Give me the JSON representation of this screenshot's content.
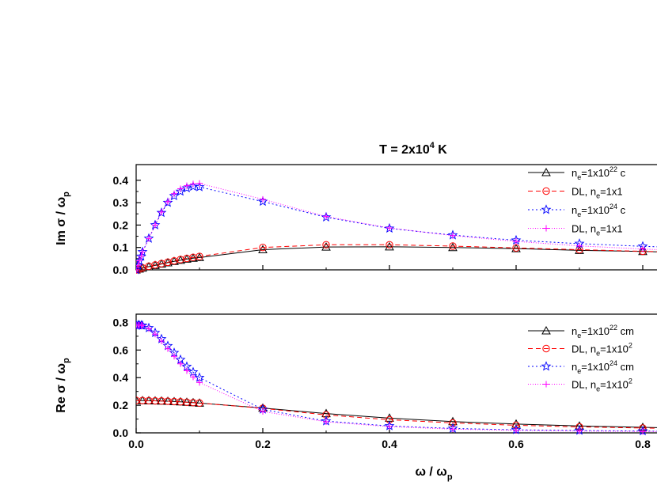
{
  "chart_data": [
    {
      "type": "line",
      "panel": "top",
      "title": "T = 2x10⁴ K",
      "ylabel": "Im σ / ω",
      "ylabel_sub": "p",
      "xlim": [
        0,
        0.86
      ],
      "ylim": [
        0,
        0.47
      ],
      "yticks": [
        0.0,
        0.1,
        0.2,
        0.3,
        0.4
      ],
      "ytick_labels": [
        "0.0",
        "0.1",
        "0.2",
        "0.3",
        "0.4"
      ],
      "legend_position": "top-right",
      "series": [
        {
          "name": "ne=1x10²² c",
          "legend": {
            "base": "n",
            "sub": "e",
            "mid": "=1x10",
            "sup": "22",
            "tail": " c"
          },
          "color": "#000000",
          "dash": "none",
          "marker": "triangle",
          "x": [
            0,
            0.005,
            0.01,
            0.02,
            0.03,
            0.04,
            0.05,
            0.06,
            0.07,
            0.08,
            0.09,
            0.1,
            0.2,
            0.3,
            0.4,
            0.5,
            0.6,
            0.7,
            0.8,
            0.86
          ],
          "y": [
            0,
            0.004,
            0.008,
            0.014,
            0.02,
            0.026,
            0.032,
            0.038,
            0.043,
            0.048,
            0.052,
            0.055,
            0.09,
            0.102,
            0.103,
            0.1,
            0.095,
            0.087,
            0.082,
            0.078
          ]
        },
        {
          "name": "DL, ne=1x1",
          "legend": {
            "base": "DL, n",
            "sub": "e",
            "mid": "=1x1",
            "sup": "",
            "tail": ""
          },
          "color": "#ff0000",
          "dash": "6,4",
          "marker": "circle",
          "x": [
            0,
            0.005,
            0.01,
            0.02,
            0.03,
            0.04,
            0.05,
            0.06,
            0.07,
            0.08,
            0.09,
            0.1,
            0.2,
            0.3,
            0.4,
            0.5,
            0.6,
            0.7,
            0.8,
            0.86
          ],
          "y": [
            0,
            0.004,
            0.009,
            0.016,
            0.022,
            0.028,
            0.034,
            0.04,
            0.046,
            0.051,
            0.056,
            0.06,
            0.1,
            0.112,
            0.112,
            0.106,
            0.098,
            0.09,
            0.083,
            0.078
          ]
        },
        {
          "name": "ne=1x10²⁴ c",
          "legend": {
            "base": "n",
            "sub": "e",
            "mid": "=1x10",
            "sup": "24",
            "tail": " c"
          },
          "color": "#0000ff",
          "dash": "2,3",
          "marker": "star",
          "x": [
            0,
            0.003,
            0.005,
            0.008,
            0.01,
            0.02,
            0.03,
            0.04,
            0.05,
            0.06,
            0.07,
            0.08,
            0.09,
            0.1,
            0.2,
            0.3,
            0.4,
            0.5,
            0.6,
            0.7,
            0.8,
            0.86
          ],
          "y": [
            0,
            0.02,
            0.04,
            0.06,
            0.08,
            0.14,
            0.2,
            0.255,
            0.3,
            0.33,
            0.35,
            0.365,
            0.372,
            0.37,
            0.305,
            0.235,
            0.185,
            0.155,
            0.132,
            0.117,
            0.105,
            0.1
          ]
        },
        {
          "name": "DL, ne=1x1",
          "legend": {
            "base": "DL, n",
            "sub": "e",
            "mid": "=1x1",
            "sup": "",
            "tail": ""
          },
          "color": "#ff00ff",
          "dash": "1,2",
          "marker": "plus",
          "x": [
            0,
            0.003,
            0.005,
            0.008,
            0.01,
            0.02,
            0.03,
            0.04,
            0.05,
            0.06,
            0.07,
            0.08,
            0.09,
            0.1,
            0.2,
            0.3,
            0.4,
            0.5,
            0.6,
            0.7,
            0.8,
            0.86
          ],
          "y": [
            0,
            0.02,
            0.04,
            0.06,
            0.08,
            0.14,
            0.2,
            0.258,
            0.305,
            0.34,
            0.362,
            0.376,
            0.384,
            0.386,
            0.315,
            0.238,
            0.187,
            0.153,
            0.127,
            0.107,
            0.093,
            0.086
          ]
        }
      ]
    },
    {
      "type": "line",
      "panel": "bottom",
      "xlabel": "ω / ω",
      "xlabel_sub": "p",
      "ylabel": "Re σ / ω",
      "ylabel_sub": "p",
      "xlim": [
        0,
        0.86
      ],
      "ylim": [
        0,
        0.86
      ],
      "xticks": [
        0.0,
        0.2,
        0.4,
        0.6,
        0.8
      ],
      "xtick_labels": [
        "0.0",
        "0.2",
        "0.4",
        "0.6",
        "0.8"
      ],
      "yticks": [
        0.0,
        0.2,
        0.4,
        0.6,
        0.8
      ],
      "ytick_labels": [
        "0.0",
        "0.2",
        "0.4",
        "0.6",
        "0.8"
      ],
      "legend_position": "top-right",
      "series": [
        {
          "name": "ne=1x10²² cm",
          "legend": {
            "base": "n",
            "sub": "e",
            "mid": "=1x10",
            "sup": "22",
            "tail": " cm"
          },
          "color": "#000000",
          "dash": "none",
          "marker": "triangle",
          "x": [
            0,
            0.01,
            0.02,
            0.03,
            0.04,
            0.05,
            0.06,
            0.07,
            0.08,
            0.09,
            0.1,
            0.2,
            0.3,
            0.4,
            0.5,
            0.6,
            0.7,
            0.8,
            0.86
          ],
          "y": [
            0.235,
            0.234,
            0.233,
            0.232,
            0.231,
            0.229,
            0.227,
            0.225,
            0.222,
            0.219,
            0.216,
            0.18,
            0.14,
            0.107,
            0.082,
            0.064,
            0.05,
            0.04,
            0.035
          ]
        },
        {
          "name": "DL, ne=1x10²",
          "legend": {
            "base": "DL, n",
            "sub": "e",
            "mid": "=1x10",
            "sup": "2",
            "tail": ""
          },
          "color": "#ff0000",
          "dash": "6,4",
          "marker": "circle",
          "x": [
            0,
            0.01,
            0.02,
            0.03,
            0.04,
            0.05,
            0.06,
            0.07,
            0.08,
            0.09,
            0.1,
            0.2,
            0.3,
            0.4,
            0.5,
            0.6,
            0.7,
            0.8,
            0.86
          ],
          "y": [
            0.235,
            0.234,
            0.233,
            0.232,
            0.231,
            0.229,
            0.227,
            0.225,
            0.222,
            0.219,
            0.216,
            0.178,
            0.13,
            0.095,
            0.072,
            0.055,
            0.043,
            0.035,
            0.03
          ]
        },
        {
          "name": "ne=1x10²⁴ cm",
          "legend": {
            "base": "n",
            "sub": "e",
            "mid": "=1x10",
            "sup": "24",
            "tail": " cm"
          },
          "color": "#0000ff",
          "dash": "2,3",
          "marker": "star",
          "x": [
            0,
            0.003,
            0.005,
            0.008,
            0.01,
            0.02,
            0.03,
            0.04,
            0.05,
            0.06,
            0.07,
            0.08,
            0.09,
            0.1,
            0.2,
            0.3,
            0.4,
            0.5,
            0.6,
            0.7,
            0.8,
            0.86
          ],
          "y": [
            0.78,
            0.78,
            0.78,
            0.779,
            0.778,
            0.76,
            0.725,
            0.68,
            0.63,
            0.58,
            0.53,
            0.48,
            0.44,
            0.4,
            0.17,
            0.085,
            0.05,
            0.032,
            0.022,
            0.017,
            0.013,
            0.011
          ]
        },
        {
          "name": "DL, ne=1x10²",
          "legend": {
            "base": "DL, n",
            "sub": "e",
            "mid": "=1x10",
            "sup": "2",
            "tail": ""
          },
          "color": "#ff00ff",
          "dash": "1,2",
          "marker": "plus",
          "x": [
            0,
            0.003,
            0.005,
            0.008,
            0.01,
            0.02,
            0.03,
            0.04,
            0.05,
            0.06,
            0.07,
            0.08,
            0.09,
            0.1,
            0.2,
            0.3,
            0.4,
            0.5,
            0.6,
            0.7,
            0.8,
            0.86
          ],
          "y": [
            0.78,
            0.78,
            0.78,
            0.779,
            0.778,
            0.755,
            0.715,
            0.665,
            0.61,
            0.555,
            0.5,
            0.45,
            0.405,
            0.365,
            0.155,
            0.08,
            0.045,
            0.027,
            0.018,
            0.013,
            0.01,
            0.009
          ]
        }
      ]
    }
  ]
}
